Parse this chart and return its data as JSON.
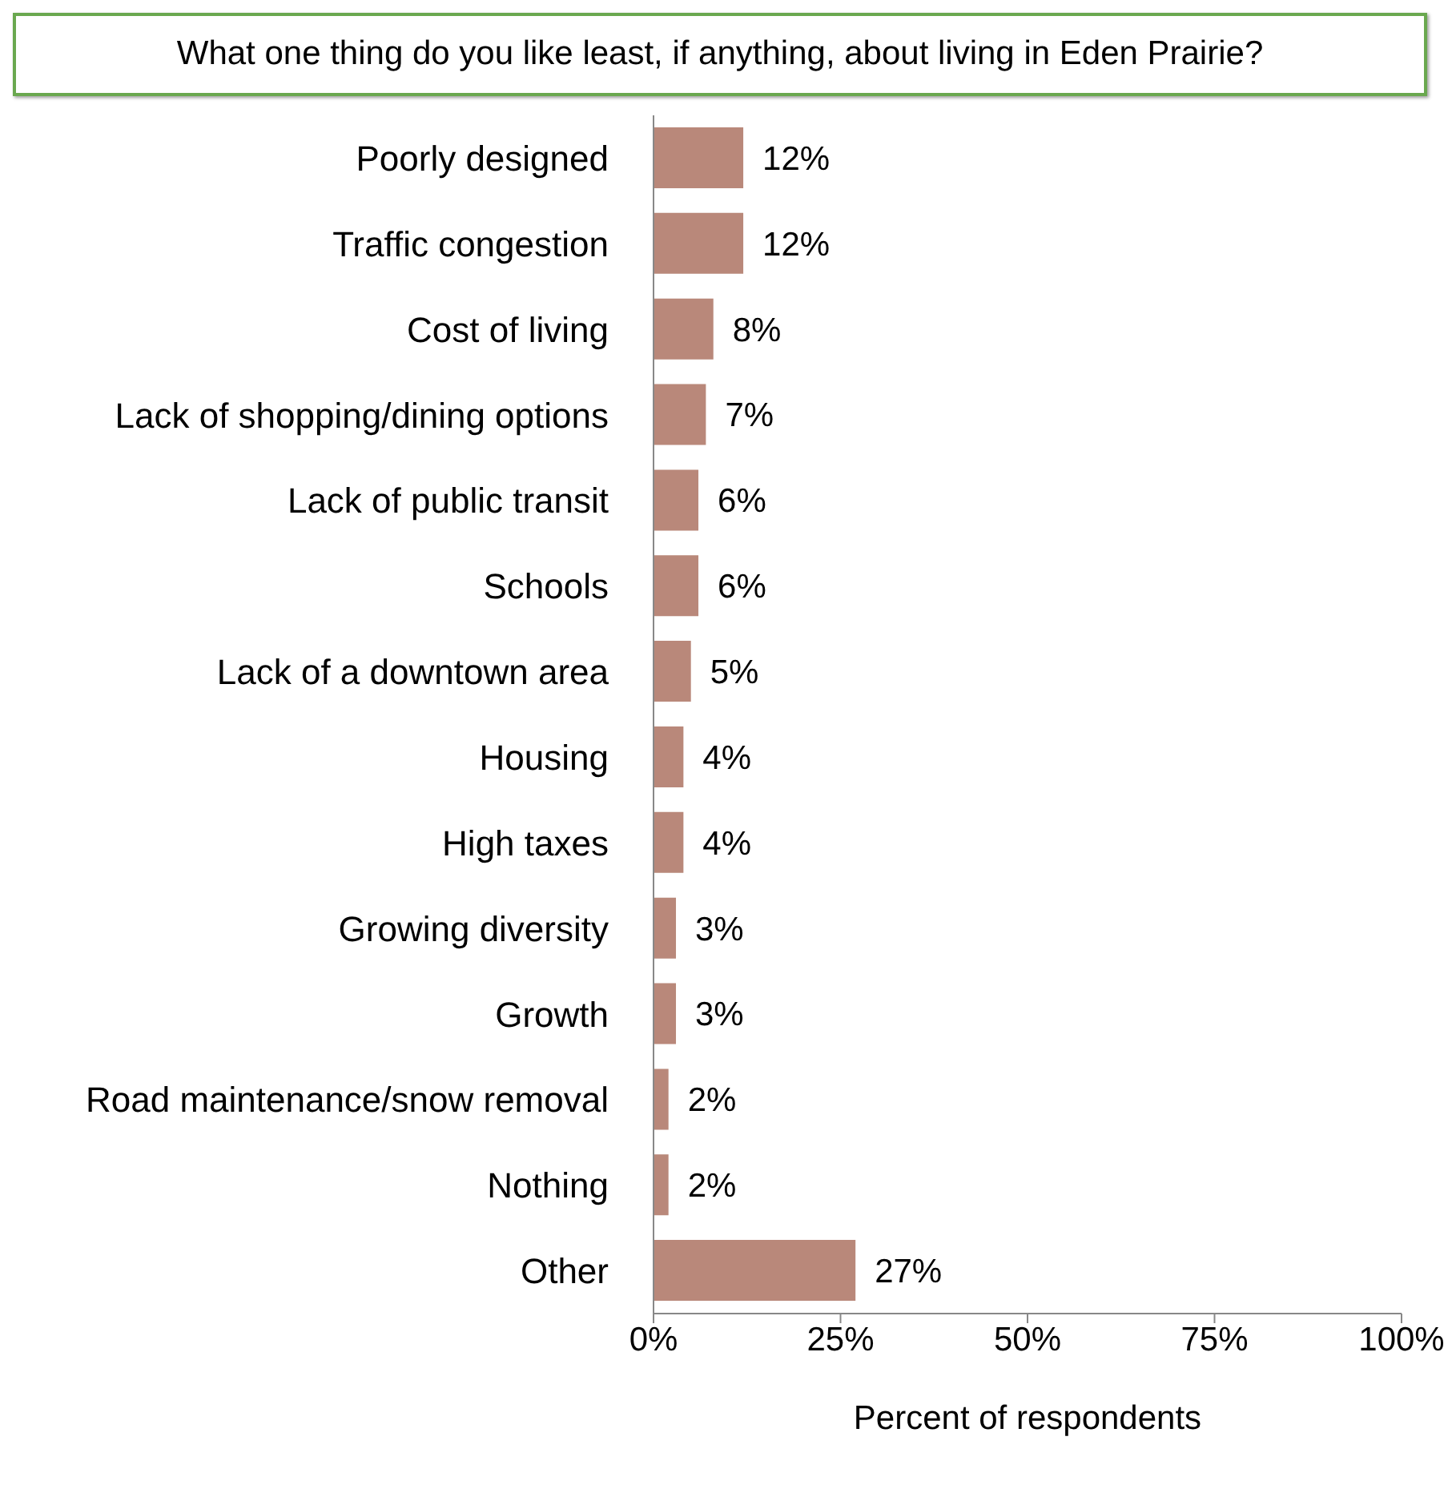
{
  "chart_data": {
    "type": "bar",
    "orientation": "horizontal",
    "title": "What one thing do you like least, if anything, about living in Eden Prairie?",
    "xlabel": "Percent of respondents",
    "categories": [
      "Poorly designed",
      "Traffic congestion",
      "Cost of living",
      "Lack of shopping/dining options",
      "Lack of public transit",
      "Schools",
      "Lack of a downtown area",
      "Housing",
      "High taxes",
      "Growing diversity",
      "Growth",
      "Road maintenance/snow removal",
      "Nothing",
      "Other"
    ],
    "values": [
      12,
      12,
      8,
      7,
      6,
      6,
      5,
      4,
      4,
      3,
      3,
      2,
      2,
      27
    ],
    "value_labels": [
      "12%",
      "12%",
      "8%",
      "7%",
      "6%",
      "6%",
      "5%",
      "4%",
      "4%",
      "3%",
      "3%",
      "2%",
      "2%",
      "27%"
    ],
    "color": "#b9887a",
    "xlim": [
      0,
      100
    ],
    "xticks": [
      {
        "value": 0,
        "label": "0%"
      },
      {
        "value": 25,
        "label": "25%"
      },
      {
        "value": 50,
        "label": "50%"
      },
      {
        "value": 75,
        "label": "75%"
      },
      {
        "value": 100,
        "label": "100%"
      }
    ],
    "grid": false,
    "legend": false
  }
}
